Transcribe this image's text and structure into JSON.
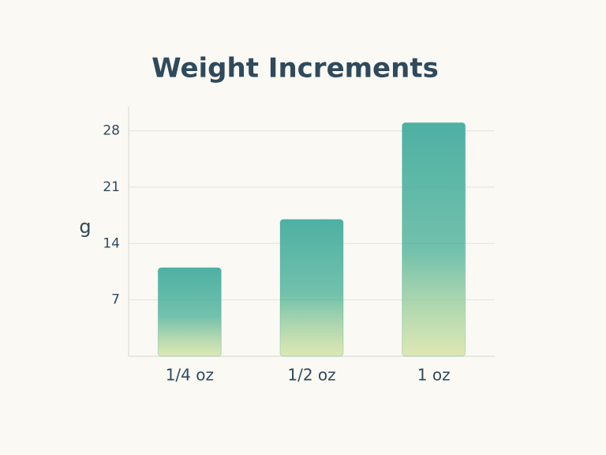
{
  "chart_data": {
    "type": "bar",
    "title": "Weight Increments",
    "y_label": "g",
    "categories": [
      "1/4 oz",
      "1/2 oz",
      "1 oz"
    ],
    "values": [
      11,
      17,
      29
    ],
    "color": "#3aa89a",
    "ylim": [
      0,
      31
    ],
    "yticks": [
      7,
      14,
      21,
      28
    ],
    "grid": true
  }
}
